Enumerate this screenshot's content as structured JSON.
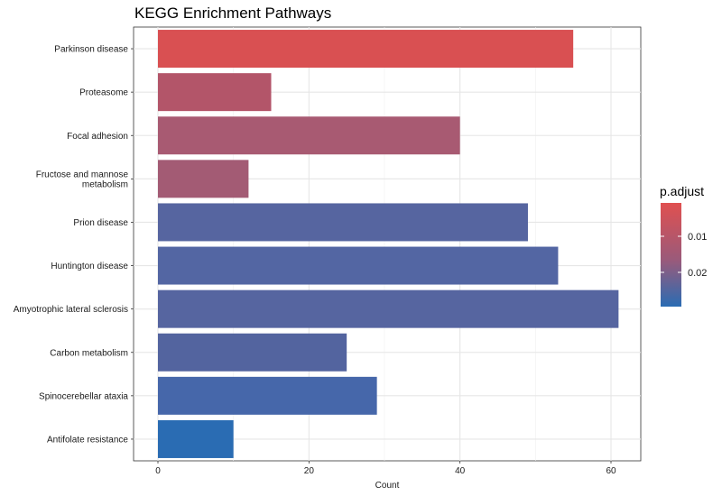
{
  "chart_data": {
    "type": "bar",
    "orientation": "horizontal",
    "title": "KEGG Enrichment Pathways",
    "xlabel": "Count",
    "ylabel": "",
    "xlim": [
      0,
      64
    ],
    "xticks": [
      0,
      20,
      40,
      60
    ],
    "grid": true,
    "legend_position": "right",
    "categories": [
      "Parkinson disease",
      "Proteasome",
      "Focal adhesion",
      "Fructose and mannose\nmetabolism",
      "Prion disease",
      "Huntington disease",
      "Amyotrophic lateral sclerosis",
      "Carbon metabolism",
      "Spinocerebellar ataxia",
      "Antifolate resistance"
    ],
    "values": [
      55,
      15,
      40,
      12,
      49,
      53,
      61,
      25,
      29,
      10
    ],
    "colors": [
      "#d95052",
      "#b35569",
      "#a85a72",
      "#a35b74",
      "#5665a0",
      "#5366a3",
      "#5665a0",
      "#53649f",
      "#4667aa",
      "#2a6cb3"
    ],
    "legend": {
      "title": "p.adjust",
      "tick_labels": [
        "0.01",
        "0.02"
      ],
      "gradient_top": "#e05050",
      "gradient_mid": "#9a5a7a",
      "gradient_bottom": "#2a6cb3"
    }
  }
}
